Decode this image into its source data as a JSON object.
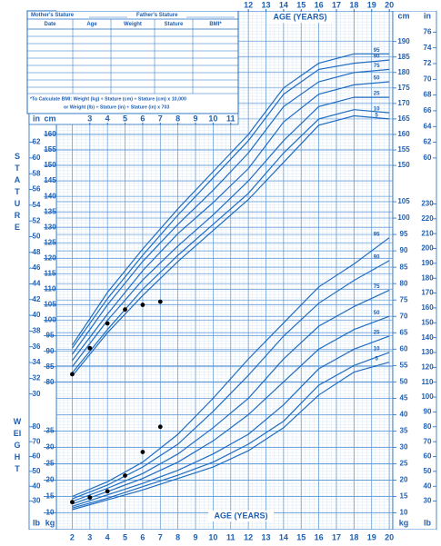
{
  "chart_data": [
    {
      "type": "line",
      "y_label": "STATURE",
      "x_label": "AGE (YEARS)",
      "xaxis": "top",
      "units": {
        "y": "cm",
        "y2": "in"
      },
      "xlim": [
        1.1,
        20.2
      ],
      "ylim": [
        77,
        199
      ],
      "y2lim": [
        30.31,
        78.35
      ],
      "xticks": [
        12,
        13,
        14,
        15,
        16,
        17,
        18,
        19,
        20
      ],
      "xticks_inner": [
        3,
        4,
        5,
        6,
        7,
        8,
        9,
        10,
        11
      ],
      "yticks_left": [
        80,
        85,
        90,
        95,
        100,
        105,
        110,
        115,
        120,
        125,
        130,
        135,
        140,
        145,
        150,
        155,
        160
      ],
      "yticks_right": [
        150,
        155,
        160,
        165,
        170,
        175,
        180,
        185,
        190
      ],
      "y2ticks_left": [
        30,
        32,
        34,
        36,
        38,
        40,
        42,
        44,
        46,
        48,
        50,
        52,
        54,
        56,
        58,
        60,
        62
      ],
      "y2ticks_right": [
        60,
        62,
        64,
        66,
        68,
        70,
        72,
        74,
        76
      ],
      "grid": true,
      "color": "#1f6cc0",
      "point_color": "#000000",
      "x": [
        2,
        4,
        6,
        8,
        10,
        12,
        14,
        16,
        18,
        20
      ],
      "series": [
        {
          "name": "95",
          "values": [
            92,
            109,
            123,
            136,
            148,
            160,
            175,
            183,
            186,
            186
          ]
        },
        {
          "name": "90",
          "values": [
            91,
            107,
            121,
            134,
            146,
            158,
            173,
            181,
            183,
            184
          ]
        },
        {
          "name": "75",
          "values": [
            89,
            105,
            119,
            131,
            142,
            154,
            169,
            177,
            180,
            181
          ]
        },
        {
          "name": "50",
          "values": [
            87,
            102,
            116,
            128,
            138,
            149,
            164,
            173,
            176,
            177
          ]
        },
        {
          "name": "25",
          "values": [
            85,
            100,
            113,
            124,
            134,
            145,
            158,
            169,
            172,
            172
          ]
        },
        {
          "name": "10",
          "values": [
            83,
            97,
            110,
            121,
            131,
            141,
            154,
            165,
            168,
            167
          ]
        },
        {
          "name": "5",
          "values": [
            82,
            96,
            108,
            119,
            129,
            139,
            151,
            163,
            166,
            165
          ]
        }
      ],
      "measurements": {
        "x": [
          2,
          3,
          4,
          5,
          6,
          7
        ],
        "y": [
          82.6,
          91,
          99,
          103.5,
          105,
          106
        ]
      }
    },
    {
      "type": "line",
      "y_label": "WEIGHT",
      "x_label": "AGE (YEARS)",
      "xaxis": "bottom",
      "units": {
        "y": "kg",
        "y2": "lb"
      },
      "xlim": [
        1.1,
        20.2
      ],
      "ylim": [
        6,
        110
      ],
      "y2lim": [
        13.23,
        242.5
      ],
      "xticks": [
        2,
        3,
        4,
        5,
        6,
        7,
        8,
        9,
        10,
        11,
        12,
        13,
        14,
        15,
        16,
        17,
        18,
        19,
        20
      ],
      "yticks_left": [
        10,
        15,
        20,
        25,
        30,
        35
      ],
      "yticks_right": [
        10,
        15,
        20,
        25,
        30,
        35,
        40,
        45,
        50,
        55,
        60,
        65,
        70,
        75,
        80,
        85,
        90,
        95,
        100,
        105
      ],
      "y2ticks_left": [
        30,
        40,
        50,
        60,
        70,
        80
      ],
      "y2ticks_right": [
        30,
        40,
        50,
        60,
        70,
        80,
        90,
        100,
        110,
        120,
        130,
        140,
        150,
        160,
        170,
        180,
        190,
        200,
        210,
        220,
        230
      ],
      "grid": true,
      "color": "#1f6cc0",
      "point_color": "#000000",
      "x": [
        2,
        4,
        6,
        8,
        10,
        12,
        14,
        16,
        18,
        20
      ],
      "series": [
        {
          "name": "95",
          "values": [
            15,
            19.5,
            25.5,
            34,
            45,
            57,
            68,
            79,
            86,
            94
          ]
        },
        {
          "name": "90",
          "values": [
            14.3,
            18.5,
            24,
            31,
            41,
            52,
            64,
            74,
            81,
            87
          ]
        },
        {
          "name": "75",
          "values": [
            13.5,
            17.5,
            22,
            28,
            36,
            45,
            57,
            67,
            73,
            78
          ]
        },
        {
          "name": "50",
          "values": [
            12.7,
            16.5,
            20.5,
            25.5,
            32,
            40,
            50,
            60,
            66,
            70
          ]
        },
        {
          "name": "25",
          "values": [
            12,
            15.5,
            19,
            23,
            28,
            34,
            43,
            54,
            60,
            64
          ]
        },
        {
          "name": "10",
          "values": [
            11.5,
            14.5,
            18,
            21.5,
            25.5,
            31,
            38,
            49,
            55,
            59
          ]
        },
        {
          "name": "5",
          "values": [
            11,
            14,
            17,
            20.5,
            24,
            29,
            36,
            46,
            53,
            56
          ]
        }
      ],
      "measurements": {
        "x": [
          2,
          3,
          4,
          5,
          6,
          7
        ],
        "y": [
          13.3,
          14.7,
          16.6,
          21.4,
          28.6,
          36.3
        ]
      }
    }
  ],
  "form": {
    "mothers_stature": "Mother's Stature",
    "fathers_stature": "Father's Stature",
    "columns": [
      "Date",
      "Age",
      "Weight",
      "Stature",
      "BMI*"
    ],
    "bmi_note": [
      "*To Calculate BMI: Weight (kg) ÷ Stature (cm) ÷ Stature (cm) x 10,000",
      "or Weight (lb) ÷ Stature (in) ÷ Stature (in) x 703"
    ]
  }
}
